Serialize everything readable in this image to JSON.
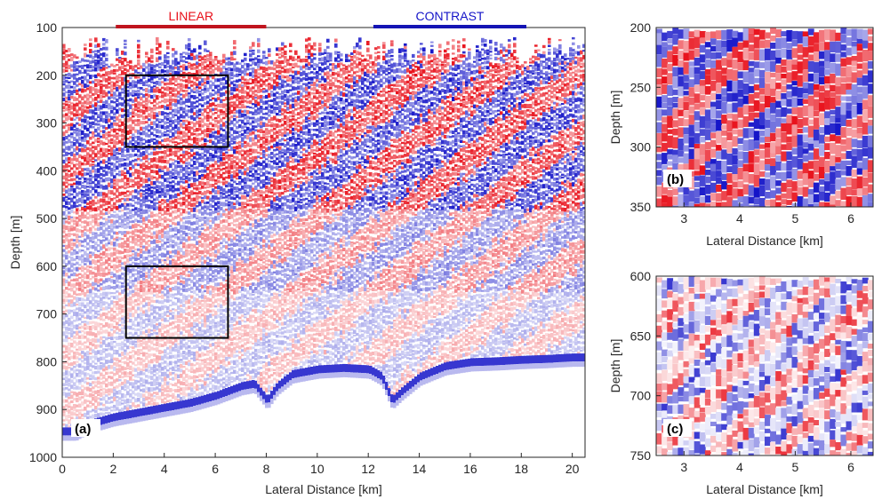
{
  "palette": {
    "red": "#e8101a",
    "blue": "#1414c8",
    "white": "#ffffff",
    "linear_bar": "#c0141e",
    "contrast_bar": "#1414b4"
  },
  "chart_data": [
    {
      "id": "a",
      "type": "heatmap",
      "panel_label": "(a)",
      "xlabel": "Lateral Distance [km]",
      "ylabel": "Depth [m]",
      "xlim": [
        0,
        20.5
      ],
      "ylim": [
        1000,
        100
      ],
      "xticks": [
        0,
        2,
        4,
        6,
        8,
        10,
        12,
        14,
        16,
        18,
        20
      ],
      "yticks": [
        100,
        200,
        300,
        400,
        500,
        600,
        700,
        800,
        900,
        1000
      ],
      "colormap": "red-white-blue (seismic amplitude)",
      "bands": [
        {
          "label": "LINEAR",
          "x": [
            2.1,
            8.0
          ],
          "color": "#c0141e",
          "text_color": "#e8101a"
        },
        {
          "label": "CONTRAST",
          "x": [
            12.2,
            18.2
          ],
          "color": "#1414b4",
          "text_color": "#1414c8"
        }
      ],
      "zoom_boxes": [
        {
          "target": "(b)",
          "x": [
            2.5,
            6.5
          ],
          "y": [
            200,
            350
          ]
        },
        {
          "target": "(c)",
          "x": [
            2.5,
            6.5
          ],
          "y": [
            600,
            750
          ]
        }
      ],
      "seafloor": {
        "x": [
          0.5,
          1,
          2,
          3,
          4,
          5,
          6,
          7,
          7.5,
          8.0,
          8.4,
          9,
          10,
          11,
          12,
          12.5,
          12.9,
          13.3,
          14,
          15,
          16,
          17,
          18,
          19,
          20,
          20.5
        ],
        "depth": [
          945,
          930,
          915,
          905,
          895,
          885,
          870,
          850,
          845,
          880,
          850,
          825,
          815,
          812,
          815,
          830,
          880,
          860,
          830,
          808,
          800,
          798,
          795,
          793,
          790,
          790
        ]
      }
    },
    {
      "id": "b",
      "type": "heatmap",
      "panel_label": "(b)",
      "xlabel": "Lateral Distance [km]",
      "ylabel": "Depth [m]",
      "xlim": [
        2.5,
        6.4
      ],
      "ylim": [
        350,
        200
      ],
      "xticks": [
        3,
        4,
        5,
        6
      ],
      "yticks": [
        200,
        250,
        300,
        350
      ],
      "colormap": "red-white-blue (seismic amplitude)"
    },
    {
      "id": "c",
      "type": "heatmap",
      "panel_label": "(c)",
      "xlabel": "Lateral Distance [km]",
      "ylabel": "Depth [m]",
      "xlim": [
        2.5,
        6.4
      ],
      "ylim": [
        750,
        600
      ],
      "xticks": [
        3,
        4,
        5,
        6
      ],
      "yticks": [
        600,
        650,
        700,
        750
      ],
      "colormap": "red-white-blue (seismic amplitude)"
    }
  ]
}
